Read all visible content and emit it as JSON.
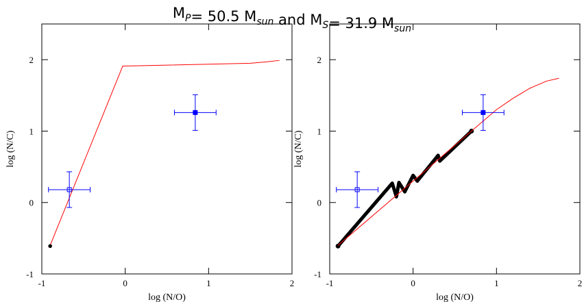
{
  "title": {
    "parts": [
      "M",
      "= 50.5 M",
      " and M",
      "= 31.9 M"
    ],
    "subscripts": [
      "P",
      "sun",
      "S",
      "sun"
    ]
  },
  "chart_data": [
    {
      "type": "line",
      "xlabel": "log (N/O)",
      "ylabel": "log (N/C)",
      "xlim": [
        -1,
        2
      ],
      "ylim": [
        -1,
        2.5
      ],
      "xticks": [
        -1,
        0,
        1,
        2
      ],
      "yticks": [
        -1,
        0,
        1,
        2
      ],
      "series": [
        {
          "color": "#ff0000",
          "width": 1,
          "x": [
            -0.9,
            -0.03,
            1.5,
            1.7,
            1.85
          ],
          "values": [
            -0.6,
            1.91,
            1.95,
            1.97,
            1.99
          ]
        },
        {
          "color": "#000000",
          "width": 4,
          "x": [
            -0.9
          ],
          "values": [
            -0.61
          ]
        }
      ],
      "points": {
        "color": "#0000ff",
        "x": [
          -0.67,
          0.84
        ],
        "values": [
          0.18,
          1.26
        ],
        "xerr": [
          0.25,
          0.25
        ],
        "yerr": [
          0.25,
          0.25
        ],
        "filled": [
          false,
          true
        ]
      }
    },
    {
      "type": "line",
      "xlabel": "log (N/O)",
      "ylabel": "log (N/C)",
      "xlim": [
        -1,
        2
      ],
      "ylim": [
        -1,
        2.5
      ],
      "xticks": [
        -1,
        0,
        1,
        2
      ],
      "yticks": [
        -1,
        0,
        1,
        2
      ],
      "series": [
        {
          "color": "#000000",
          "width": 5,
          "x": [
            -0.9,
            -0.25,
            -0.2,
            -0.17,
            -0.1,
            0,
            0.05,
            0.3,
            0.32,
            0.7
          ],
          "values": [
            -0.61,
            0.27,
            0.08,
            0.28,
            0.15,
            0.38,
            0.3,
            0.66,
            0.58,
            1.0
          ]
        },
        {
          "color": "#ff0000",
          "width": 1,
          "x": [
            -0.9,
            0.7,
            1.0,
            1.2,
            1.4,
            1.6,
            1.75
          ],
          "values": [
            -0.6,
            1.0,
            1.3,
            1.46,
            1.6,
            1.7,
            1.74
          ]
        }
      ],
      "points": {
        "color": "#0000ff",
        "x": [
          -0.67,
          0.84
        ],
        "values": [
          0.18,
          1.26
        ],
        "xerr": [
          0.25,
          0.25
        ],
        "yerr": [
          0.25,
          0.25
        ],
        "filled": [
          false,
          true
        ]
      }
    }
  ]
}
